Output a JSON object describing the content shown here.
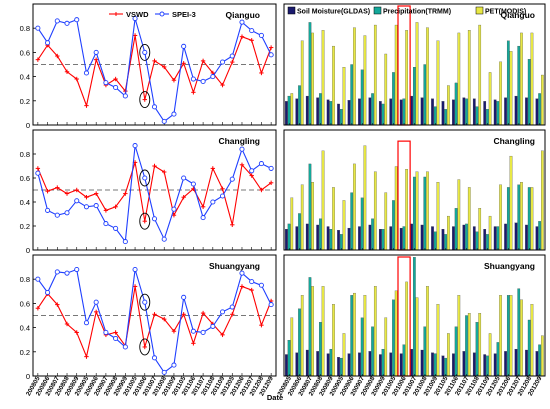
{
  "colors": {
    "vswd": "#ff0000",
    "spei": "#1f3fff",
    "threshold": "#777777",
    "soil": "#1a1a6e",
    "precip": "#14a89a",
    "pet": "#e8e845",
    "highlight": "#ff0000",
    "circle": "#000000"
  },
  "xlabel": "Date",
  "x_ticks": [
    "200805",
    "200806",
    "200807",
    "200808",
    "200809",
    "200905",
    "200906",
    "200907",
    "200908",
    "200909",
    "201005",
    "201006",
    "201007",
    "201008",
    "201009",
    "201105",
    "201106",
    "201107",
    "201108",
    "201109",
    "201205",
    "201206",
    "201207",
    "201208",
    "201209"
  ],
  "chart_data": [
    {
      "type": "line",
      "station": "Qianguo",
      "legend": [
        "VSWD",
        "SPEI-3"
      ],
      "ylim": [
        0,
        1
      ],
      "y_ticks": [
        "0",
        "0.2",
        "0.4",
        "0.6",
        "0.8"
      ],
      "threshold": 0.5,
      "highlight_index": 11,
      "x": [
        "200805",
        "200806",
        "200807",
        "200808",
        "200809",
        "200905",
        "200906",
        "200907",
        "200908",
        "200909",
        "201005",
        "201006",
        "201007",
        "201008",
        "201009",
        "201105",
        "201106",
        "201107",
        "201108",
        "201109",
        "201205",
        "201206",
        "201207",
        "201208",
        "201209"
      ],
      "series": [
        {
          "name": "VSWD",
          "values": [
            0.54,
            0.66,
            0.57,
            0.44,
            0.38,
            0.16,
            0.54,
            0.33,
            0.38,
            0.28,
            0.74,
            0.21,
            0.53,
            0.48,
            0.37,
            0.51,
            0.27,
            0.53,
            0.43,
            0.33,
            0.52,
            0.73,
            0.7,
            0.43,
            0.64
          ]
        },
        {
          "name": "SPEI-3",
          "values": [
            0.8,
            0.68,
            0.86,
            0.84,
            0.87,
            0.43,
            0.6,
            0.35,
            0.31,
            0.24,
            0.88,
            0.6,
            0.15,
            0.03,
            0.09,
            0.65,
            0.38,
            0.36,
            0.4,
            0.52,
            0.57,
            0.85,
            0.78,
            0.74,
            0.58
          ]
        }
      ]
    },
    {
      "type": "line",
      "station": "Changling",
      "legend": [],
      "ylim": [
        0,
        1
      ],
      "y_ticks": [
        "0",
        "0.2",
        "0.4",
        "0.6",
        "0.8"
      ],
      "threshold": 0.5,
      "highlight_index": 11,
      "x": [
        "200805",
        "200806",
        "200807",
        "200808",
        "200809",
        "200905",
        "200906",
        "200907",
        "200908",
        "200909",
        "201005",
        "201006",
        "201007",
        "201008",
        "201009",
        "201105",
        "201106",
        "201107",
        "201108",
        "201109",
        "201205",
        "201206",
        "201207",
        "201208",
        "201209"
      ],
      "series": [
        {
          "name": "VSWD",
          "values": [
            0.68,
            0.49,
            0.52,
            0.47,
            0.5,
            0.44,
            0.47,
            0.33,
            0.36,
            0.47,
            0.73,
            0.24,
            0.7,
            0.65,
            0.29,
            0.44,
            0.51,
            0.36,
            0.68,
            0.51,
            0.21,
            0.71,
            0.62,
            0.5,
            0.56
          ]
        },
        {
          "name": "SPEI-3",
          "values": [
            0.64,
            0.33,
            0.29,
            0.31,
            0.41,
            0.36,
            0.37,
            0.22,
            0.18,
            0.07,
            0.87,
            0.6,
            0.26,
            0.09,
            0.34,
            0.6,
            0.55,
            0.27,
            0.4,
            0.45,
            0.59,
            0.84,
            0.66,
            0.72,
            0.68
          ]
        }
      ]
    },
    {
      "type": "line",
      "station": "Shuangyang",
      "legend": [],
      "ylim": [
        0,
        1
      ],
      "y_ticks": [
        "0",
        "0.2",
        "0.4",
        "0.6",
        "0.8"
      ],
      "threshold": 0.5,
      "highlight_index": 11,
      "x": [
        "200805",
        "200806",
        "200807",
        "200808",
        "200809",
        "200905",
        "200906",
        "200907",
        "200908",
        "200909",
        "201005",
        "201006",
        "201007",
        "201008",
        "201009",
        "201105",
        "201106",
        "201107",
        "201108",
        "201109",
        "201205",
        "201206",
        "201207",
        "201208",
        "201209"
      ],
      "series": [
        {
          "name": "VSWD",
          "values": [
            0.56,
            0.68,
            0.59,
            0.43,
            0.36,
            0.16,
            0.53,
            0.34,
            0.36,
            0.25,
            0.74,
            0.24,
            0.51,
            0.47,
            0.37,
            0.51,
            0.27,
            0.52,
            0.43,
            0.34,
            0.51,
            0.74,
            0.71,
            0.42,
            0.62
          ]
        },
        {
          "name": "SPEI-3",
          "values": [
            0.8,
            0.69,
            0.86,
            0.85,
            0.88,
            0.44,
            0.61,
            0.36,
            0.31,
            0.24,
            0.88,
            0.61,
            0.15,
            0.03,
            0.09,
            0.65,
            0.37,
            0.36,
            0.41,
            0.53,
            0.57,
            0.85,
            0.78,
            0.75,
            0.59
          ]
        }
      ]
    },
    {
      "type": "bar",
      "station": "Qianguo",
      "legend": [
        "Soil Moisture(GLDAS)",
        "Precipitation(TRMM)",
        "PET(MODIS)"
      ],
      "ylim": [
        0,
        230
      ],
      "highlight_index": 11,
      "categories": [
        "200805",
        "200806",
        "200807",
        "200808",
        "200809",
        "200905",
        "200906",
        "200907",
        "200908",
        "200909",
        "201005",
        "201006",
        "201007",
        "201008",
        "201009",
        "201105",
        "201106",
        "201107",
        "201108",
        "201109",
        "201205",
        "201206",
        "201207",
        "201208",
        "201209"
      ],
      "series": [
        {
          "name": "Soil Moisture(GLDAS)",
          "values": [
            45,
            50,
            55,
            52,
            48,
            40,
            47,
            50,
            52,
            45,
            50,
            48,
            55,
            52,
            50,
            45,
            48,
            52,
            50,
            45,
            48,
            52,
            55,
            52,
            50
          ]
        },
        {
          "name": "Precipitation(TRMM)",
          "values": [
            55,
            75,
            195,
            60,
            45,
            30,
            115,
            105,
            60,
            40,
            100,
            50,
            110,
            115,
            35,
            30,
            80,
            50,
            35,
            30,
            45,
            160,
            150,
            125,
            60
          ]
        },
        {
          "name": "PET(MODIS)",
          "values": [
            60,
            160,
            175,
            180,
            150,
            110,
            185,
            170,
            190,
            135,
            190,
            180,
            195,
            185,
            160,
            75,
            175,
            180,
            190,
            100,
            120,
            140,
            175,
            175,
            95
          ]
        }
      ]
    },
    {
      "type": "bar",
      "station": "Changling",
      "legend": [],
      "ylim": [
        0,
        230
      ],
      "highlight_index": 11,
      "categories": [
        "200805",
        "200806",
        "200807",
        "200808",
        "200809",
        "200905",
        "200906",
        "200907",
        "200908",
        "200909",
        "201005",
        "201006",
        "201007",
        "201008",
        "201009",
        "201105",
        "201106",
        "201107",
        "201108",
        "201109",
        "201205",
        "201206",
        "201207",
        "201208",
        "201209"
      ],
      "series": [
        {
          "name": "Soil Moisture(GLDAS)",
          "values": [
            40,
            45,
            50,
            48,
            45,
            38,
            42,
            45,
            48,
            40,
            45,
            42,
            50,
            48,
            45,
            40,
            45,
            48,
            45,
            40,
            45,
            50,
            52,
            48,
            45
          ]
        },
        {
          "name": "Precipitation(TRMM)",
          "values": [
            50,
            70,
            165,
            60,
            40,
            30,
            110,
            100,
            60,
            40,
            95,
            45,
            140,
            140,
            35,
            30,
            80,
            50,
            35,
            30,
            45,
            120,
            125,
            120,
            55
          ]
        },
        {
          "name": "PET(MODIS)",
          "values": [
            100,
            125,
            130,
            190,
            120,
            95,
            165,
            200,
            150,
            110,
            160,
            155,
            150,
            150,
            130,
            65,
            135,
            120,
            80,
            65,
            125,
            180,
            130,
            120,
            190
          ]
        }
      ]
    },
    {
      "type": "bar",
      "station": "Shuangyang",
      "legend": [],
      "ylim": [
        0,
        270
      ],
      "highlight_index": 11,
      "categories": [
        "200805",
        "200806",
        "200807",
        "200808",
        "200809",
        "200905",
        "200906",
        "200907",
        "200908",
        "200909",
        "201005",
        "201006",
        "201007",
        "201008",
        "201009",
        "201105",
        "201106",
        "201107",
        "201108",
        "201109",
        "201205",
        "201206",
        "201207",
        "201208",
        "201209"
      ],
      "series": [
        {
          "name": "Soil Moisture(GLDAS)",
          "values": [
            48,
            52,
            58,
            55,
            50,
            42,
            50,
            52,
            55,
            48,
            52,
            50,
            60,
            58,
            52,
            45,
            50,
            55,
            52,
            48,
            50,
            55,
            60,
            58,
            55
          ]
        },
        {
          "name": "Precipitation(TRMM)",
          "values": [
            80,
            150,
            220,
            120,
            60,
            40,
            180,
            130,
            110,
            60,
            170,
            70,
            265,
            110,
            50,
            40,
            110,
            135,
            120,
            45,
            75,
            180,
            195,
            125,
            70
          ]
        },
        {
          "name": "PET(MODIS)",
          "values": [
            130,
            180,
            200,
            200,
            160,
            95,
            185,
            180,
            200,
            130,
            190,
            210,
            175,
            200,
            160,
            95,
            180,
            140,
            140,
            95,
            180,
            180,
            170,
            160,
            90
          ]
        }
      ]
    }
  ]
}
